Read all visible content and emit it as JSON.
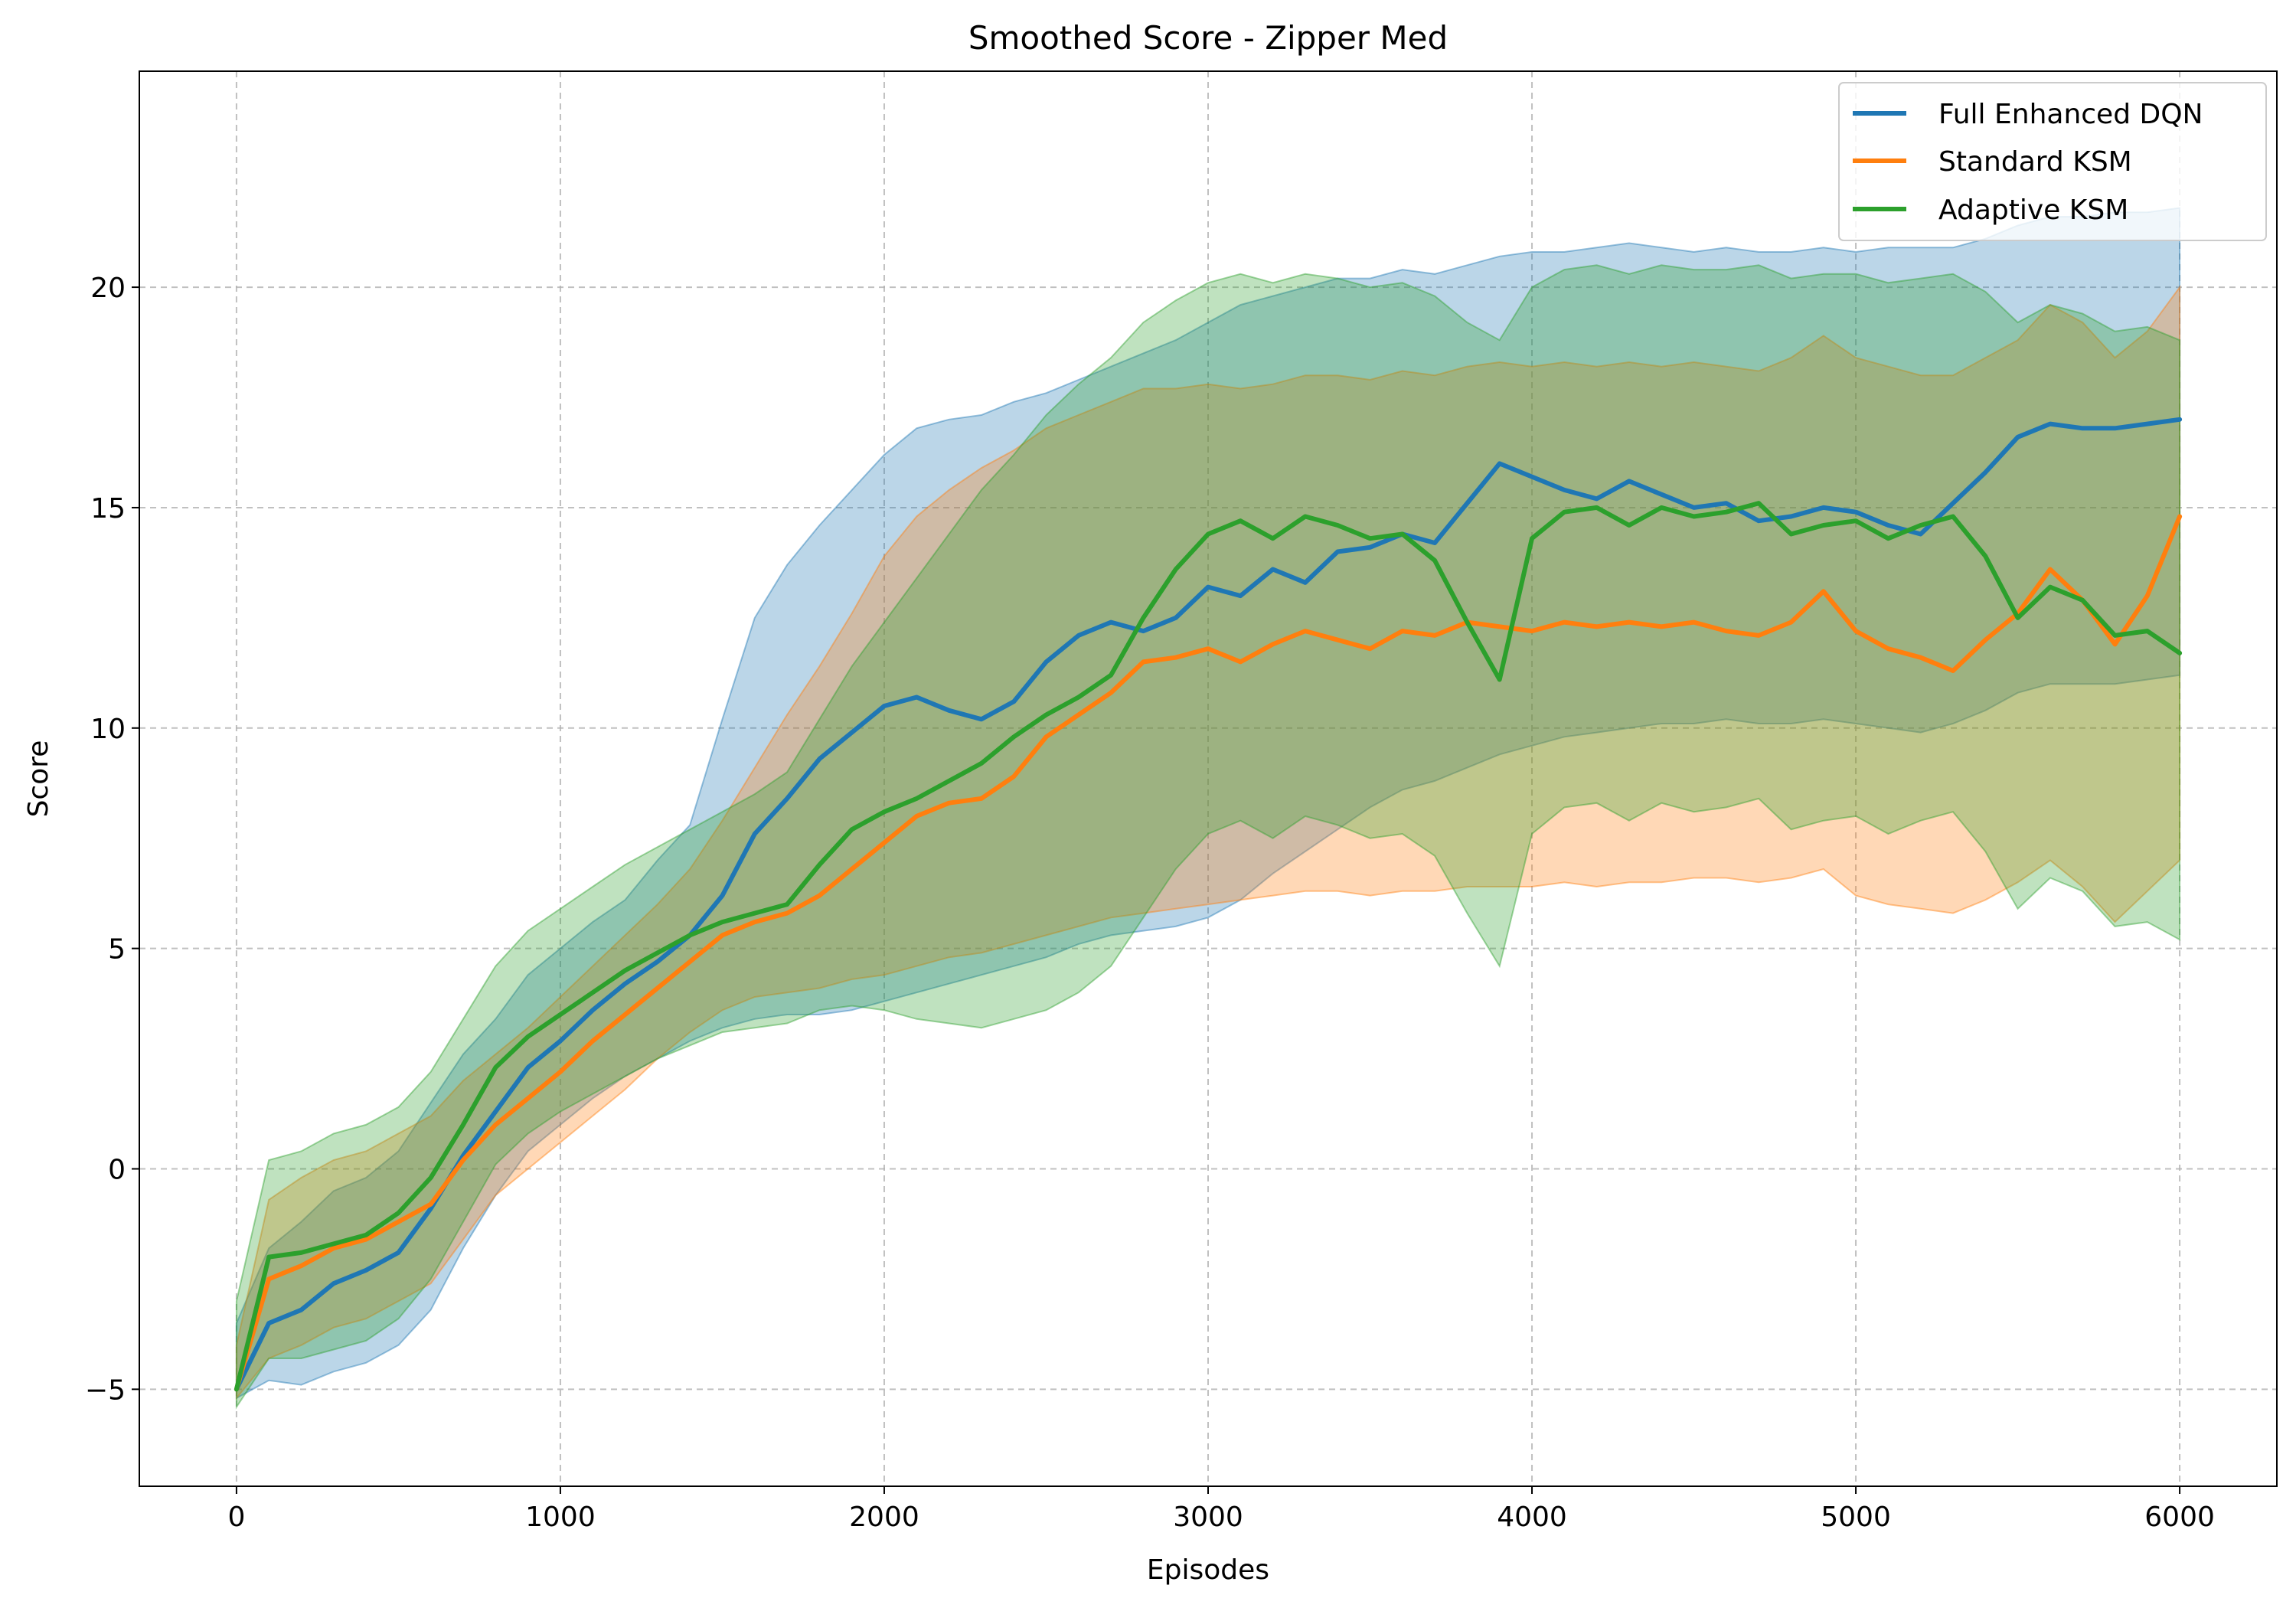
{
  "chart_data": {
    "type": "line",
    "title": "Smoothed Score - Zipper Med",
    "xlabel": "Episodes",
    "ylabel": "Score",
    "xlim": [
      -300,
      6300
    ],
    "ylim": [
      -7.2,
      24.9
    ],
    "xticks": [
      0,
      1000,
      2000,
      3000,
      4000,
      5000,
      6000
    ],
    "yticks": [
      -5,
      0,
      5,
      10,
      15,
      20
    ],
    "xtick_labels": [
      "0",
      "1000",
      "2000",
      "3000",
      "4000",
      "5000",
      "6000"
    ],
    "ytick_labels": [
      "−5",
      "0",
      "5",
      "10",
      "15",
      "20"
    ],
    "grid": true,
    "legend_position": "top-right",
    "x": [
      0,
      100,
      200,
      300,
      400,
      500,
      600,
      700,
      800,
      900,
      1000,
      1100,
      1200,
      1300,
      1400,
      1500,
      1600,
      1700,
      1800,
      1900,
      2000,
      2100,
      2200,
      2300,
      2400,
      2500,
      2600,
      2700,
      2800,
      2900,
      3000,
      3100,
      3200,
      3300,
      3400,
      3500,
      3600,
      3700,
      3800,
      3900,
      4000,
      4100,
      4200,
      4300,
      4400,
      4500,
      4600,
      4700,
      4800,
      4900,
      5000,
      5100,
      5200,
      5300,
      5400,
      5500,
      5600,
      5700,
      5800,
      5900,
      6000
    ],
    "series": [
      {
        "name": "Full Enhanced DQN",
        "color": "#1f77b4",
        "values": [
          -5.0,
          -3.5,
          -3.2,
          -2.6,
          -2.3,
          -1.9,
          -0.9,
          0.3,
          1.3,
          2.3,
          2.9,
          3.6,
          4.2,
          4.7,
          5.3,
          6.2,
          7.6,
          8.4,
          9.3,
          9.9,
          10.5,
          10.7,
          10.4,
          10.2,
          10.6,
          11.5,
          12.1,
          12.4,
          12.2,
          12.5,
          13.2,
          13.0,
          13.6,
          13.3,
          14.0,
          14.1,
          14.4,
          14.2,
          15.1,
          16.0,
          15.7,
          15.4,
          15.2,
          15.6,
          15.3,
          15.0,
          15.1,
          14.7,
          14.8,
          15.0,
          14.9,
          14.6,
          14.4,
          15.1,
          15.8,
          16.6,
          16.9,
          16.8,
          16.8,
          16.9,
          17.0
        ],
        "upper": [
          -3.5,
          -1.8,
          -1.2,
          -0.5,
          -0.2,
          0.4,
          1.5,
          2.6,
          3.4,
          4.4,
          5.0,
          5.6,
          6.1,
          7.0,
          7.8,
          10.2,
          12.5,
          13.7,
          14.6,
          15.4,
          16.2,
          16.8,
          17.0,
          17.1,
          17.4,
          17.6,
          17.9,
          18.2,
          18.5,
          18.8,
          19.2,
          19.6,
          19.8,
          20.0,
          20.2,
          20.2,
          20.4,
          20.3,
          20.5,
          20.7,
          20.8,
          20.8,
          20.9,
          21.0,
          20.9,
          20.8,
          20.9,
          20.8,
          20.8,
          20.9,
          20.8,
          20.9,
          20.9,
          20.9,
          21.1,
          21.4,
          21.6,
          21.6,
          21.7,
          21.7,
          21.8
        ],
        "lower": [
          -5.2,
          -4.8,
          -4.9,
          -4.6,
          -4.4,
          -4.0,
          -3.2,
          -1.8,
          -0.6,
          0.4,
          1.0,
          1.6,
          2.1,
          2.5,
          2.9,
          3.2,
          3.4,
          3.5,
          3.5,
          3.6,
          3.8,
          4.0,
          4.2,
          4.4,
          4.6,
          4.8,
          5.1,
          5.3,
          5.4,
          5.5,
          5.7,
          6.1,
          6.7,
          7.2,
          7.7,
          8.2,
          8.6,
          8.8,
          9.1,
          9.4,
          9.6,
          9.8,
          9.9,
          10.0,
          10.1,
          10.1,
          10.2,
          10.1,
          10.1,
          10.2,
          10.1,
          10.0,
          9.9,
          10.1,
          10.4,
          10.8,
          11.0,
          11.0,
          11.0,
          11.1,
          11.2
        ]
      },
      {
        "name": "Standard KSM",
        "color": "#ff7f0e",
        "values": [
          -5.0,
          -2.5,
          -2.2,
          -1.8,
          -1.6,
          -1.2,
          -0.8,
          0.2,
          1.0,
          1.6,
          2.2,
          2.9,
          3.5,
          4.1,
          4.7,
          5.3,
          5.6,
          5.8,
          6.2,
          6.8,
          7.4,
          8.0,
          8.3,
          8.4,
          8.9,
          9.8,
          10.3,
          10.8,
          11.5,
          11.6,
          11.8,
          11.5,
          11.9,
          12.2,
          12.0,
          11.8,
          12.2,
          12.1,
          12.4,
          12.3,
          12.2,
          12.4,
          12.3,
          12.4,
          12.3,
          12.4,
          12.2,
          12.1,
          12.4,
          13.1,
          12.2,
          11.8,
          11.6,
          11.3,
          12.0,
          12.6,
          13.6,
          12.9,
          11.9,
          13.0,
          14.8
        ],
        "upper": [
          -4.0,
          -0.7,
          -0.2,
          0.2,
          0.4,
          0.8,
          1.2,
          2.0,
          2.6,
          3.2,
          3.9,
          4.6,
          5.3,
          6.0,
          6.8,
          7.9,
          9.1,
          10.3,
          11.4,
          12.6,
          13.9,
          14.8,
          15.4,
          15.9,
          16.3,
          16.8,
          17.1,
          17.4,
          17.7,
          17.7,
          17.8,
          17.7,
          17.8,
          18.0,
          18.0,
          17.9,
          18.1,
          18.0,
          18.2,
          18.3,
          18.2,
          18.3,
          18.2,
          18.3,
          18.2,
          18.3,
          18.2,
          18.1,
          18.4,
          18.9,
          18.4,
          18.2,
          18.0,
          18.0,
          18.4,
          18.8,
          19.6,
          19.2,
          18.4,
          19.0,
          20.0
        ],
        "lower": [
          -5.2,
          -4.3,
          -4.0,
          -3.6,
          -3.4,
          -3.0,
          -2.6,
          -1.6,
          -0.6,
          0.0,
          0.6,
          1.2,
          1.8,
          2.5,
          3.1,
          3.6,
          3.9,
          4.0,
          4.1,
          4.3,
          4.4,
          4.6,
          4.8,
          4.9,
          5.1,
          5.3,
          5.5,
          5.7,
          5.8,
          5.9,
          6.0,
          6.1,
          6.2,
          6.3,
          6.3,
          6.2,
          6.3,
          6.3,
          6.4,
          6.4,
          6.4,
          6.5,
          6.4,
          6.5,
          6.5,
          6.6,
          6.6,
          6.5,
          6.6,
          6.8,
          6.2,
          6.0,
          5.9,
          5.8,
          6.1,
          6.5,
          7.0,
          6.4,
          5.6,
          6.3,
          7.0
        ]
      },
      {
        "name": "Adaptive KSM",
        "color": "#2ca02c",
        "values": [
          -5.0,
          -2.0,
          -1.9,
          -1.7,
          -1.5,
          -1.0,
          -0.2,
          1.0,
          2.3,
          3.0,
          3.5,
          4.0,
          4.5,
          4.9,
          5.3,
          5.6,
          5.8,
          6.0,
          6.9,
          7.7,
          8.1,
          8.4,
          8.8,
          9.2,
          9.8,
          10.3,
          10.7,
          11.2,
          12.5,
          13.6,
          14.4,
          14.7,
          14.3,
          14.8,
          14.6,
          14.3,
          14.4,
          13.8,
          12.4,
          11.1,
          14.3,
          14.9,
          15.0,
          14.6,
          15.0,
          14.8,
          14.9,
          15.1,
          14.4,
          14.6,
          14.7,
          14.3,
          14.6,
          14.8,
          13.9,
          12.5,
          13.2,
          12.9,
          12.1,
          12.2,
          11.7
        ],
        "upper": [
          -3.0,
          0.2,
          0.4,
          0.8,
          1.0,
          1.4,
          2.2,
          3.4,
          4.6,
          5.4,
          5.9,
          6.4,
          6.9,
          7.3,
          7.7,
          8.1,
          8.5,
          9.0,
          10.2,
          11.4,
          12.4,
          13.4,
          14.4,
          15.4,
          16.2,
          17.1,
          17.8,
          18.4,
          19.2,
          19.7,
          20.1,
          20.3,
          20.1,
          20.3,
          20.2,
          20.0,
          20.1,
          19.8,
          19.2,
          18.8,
          20.0,
          20.4,
          20.5,
          20.3,
          20.5,
          20.4,
          20.4,
          20.5,
          20.2,
          20.3,
          20.3,
          20.1,
          20.2,
          20.3,
          19.9,
          19.2,
          19.6,
          19.4,
          19.0,
          19.1,
          18.8
        ],
        "lower": [
          -5.4,
          -4.3,
          -4.3,
          -4.1,
          -3.9,
          -3.4,
          -2.5,
          -1.2,
          0.1,
          0.8,
          1.3,
          1.7,
          2.1,
          2.5,
          2.8,
          3.1,
          3.2,
          3.3,
          3.6,
          3.7,
          3.6,
          3.4,
          3.3,
          3.2,
          3.4,
          3.6,
          4.0,
          4.6,
          5.7,
          6.8,
          7.6,
          7.9,
          7.5,
          8.0,
          7.8,
          7.5,
          7.6,
          7.1,
          5.8,
          4.6,
          7.6,
          8.2,
          8.3,
          7.9,
          8.3,
          8.1,
          8.2,
          8.4,
          7.7,
          7.9,
          8.0,
          7.6,
          7.9,
          8.1,
          7.2,
          5.9,
          6.6,
          6.3,
          5.5,
          5.6,
          5.2
        ]
      }
    ]
  }
}
